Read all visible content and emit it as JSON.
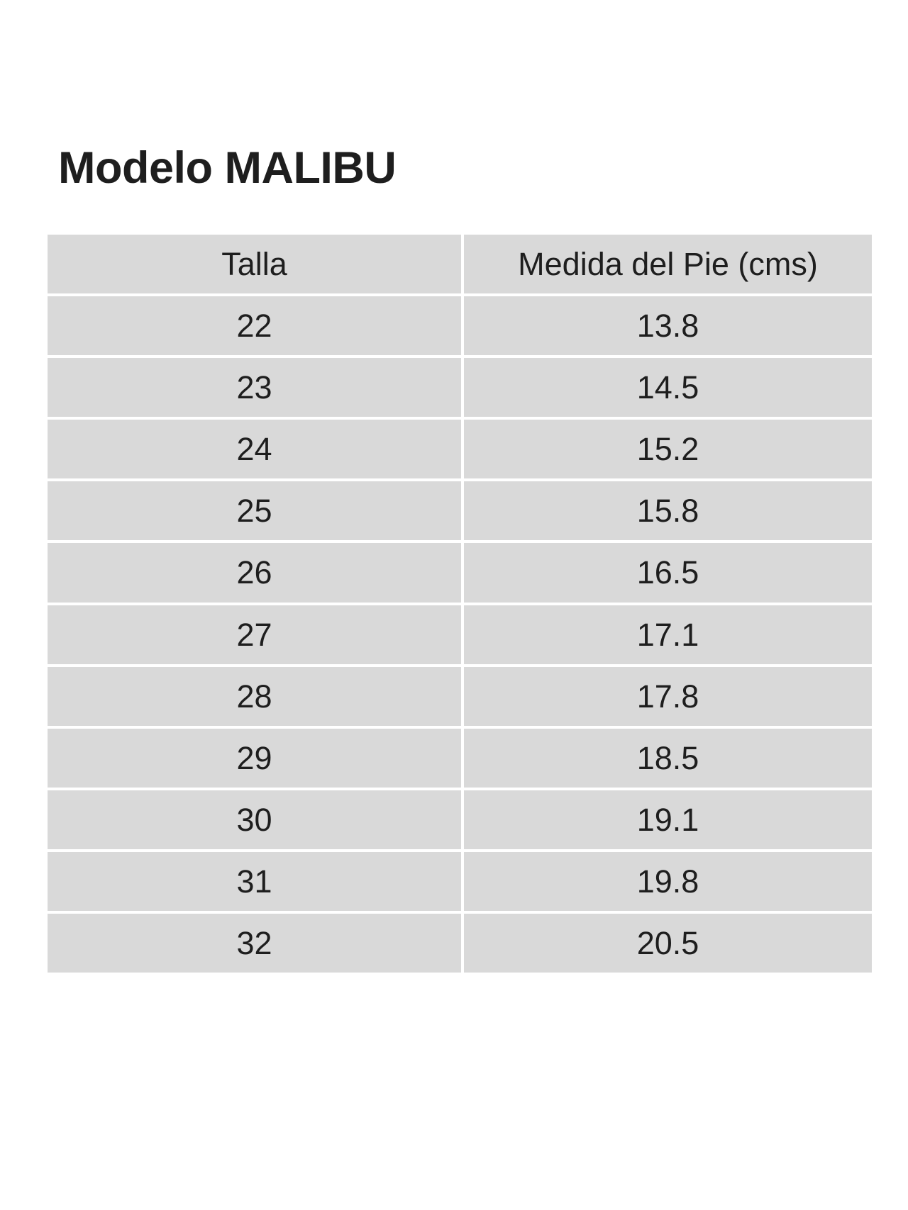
{
  "page": {
    "title": "Modelo MALIBU",
    "background_color": "#ffffff"
  },
  "table": {
    "columns": [
      "Talla",
      "Medida del Pie (cms)"
    ],
    "rows": [
      {
        "talla": "22",
        "medida": "13.8"
      },
      {
        "talla": "23",
        "medida": "14.5"
      },
      {
        "talla": "24",
        "medida": "15.2"
      },
      {
        "talla": "25",
        "medida": "15.8"
      },
      {
        "talla": "26",
        "medida": "16.5"
      },
      {
        "talla": "27",
        "medida": "17.1"
      },
      {
        "talla": "28",
        "medida": "17.8"
      },
      {
        "talla": "29",
        "medida": "18.5"
      },
      {
        "talla": "30",
        "medida": "19.1"
      },
      {
        "talla": "31",
        "medida": "19.8"
      },
      {
        "talla": "32",
        "medida": "20.5"
      }
    ],
    "colors": {
      "cell_background": "#d9d9d9",
      "gridline": "#ffffff",
      "text": "#1e1e1e"
    }
  }
}
